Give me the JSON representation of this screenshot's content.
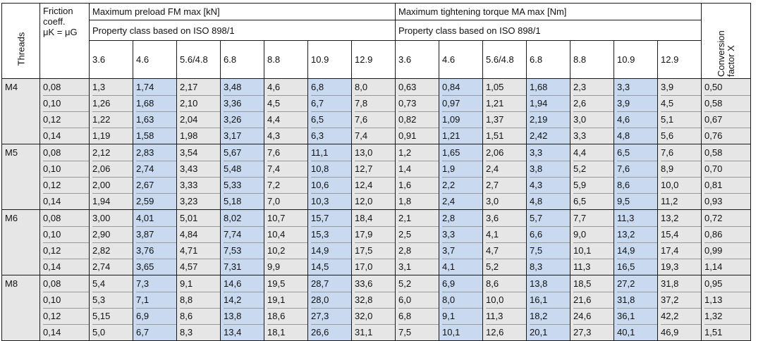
{
  "headers": {
    "threads": "Threads",
    "friction_line1": "Friction",
    "friction_line2": "coeff.",
    "friction_symbol": "μK = μG",
    "preload_title": "Maximum preload FM max [kN]",
    "torque_title": "Maximum tightening torque MA max [Nm]",
    "property_class_preload": "Property class based on ISO 898/1",
    "property_class_torque": "Property class based on ISO 898/1",
    "conversion": "Conversion factor X"
  },
  "classes": [
    "3.6",
    "4.6",
    "5.6/4.8",
    "6.8",
    "8.8",
    "10.9",
    "12.9"
  ],
  "groups": [
    {
      "thread": "M4",
      "friction": [
        "0,08",
        "0,10",
        "0,12",
        "0,14"
      ],
      "preload": [
        [
          "1,3",
          "1,26",
          "1,22",
          "1,19"
        ],
        [
          "1,74",
          "1,68",
          "1,63",
          "1,58"
        ],
        [
          "2,17",
          "2,10",
          "2,04",
          "1,98"
        ],
        [
          "3,48",
          "3,36",
          "3,26",
          "3,17"
        ],
        [
          "4,6",
          "4,5",
          "4,4",
          "4,3"
        ],
        [
          "6,8",
          "6,7",
          "6,5",
          "6,3"
        ],
        [
          "8,0",
          "7,8",
          "7,6",
          "7,4"
        ]
      ],
      "torque": [
        [
          "0,63",
          "0,73",
          "0,82",
          "0,91"
        ],
        [
          "0,84",
          "0,97",
          "1,09",
          "1,21"
        ],
        [
          "1,05",
          "1,21",
          "1,37",
          "1,51"
        ],
        [
          "1,68",
          "1,94",
          "2,19",
          "2,42"
        ],
        [
          "2,3",
          "2,6",
          "3,0",
          "3,3"
        ],
        [
          "3,3",
          "3,9",
          "4,6",
          "4,8"
        ],
        [
          "3,9",
          "4,5",
          "5,1",
          "5,6"
        ]
      ],
      "conversion": [
        "0,50",
        "0,58",
        "0,67",
        "0,76"
      ]
    },
    {
      "thread": "M5",
      "friction": [
        "0,08",
        "0,10",
        "0,12",
        "0,14"
      ],
      "preload": [
        [
          "2,12",
          "2,06",
          "2,00",
          "1,94"
        ],
        [
          "2,83",
          "2,74",
          "2,67",
          "2,59"
        ],
        [
          "3,54",
          "3,43",
          "3,33",
          "3,23"
        ],
        [
          "5,67",
          "5,48",
          "5,33",
          "5,18"
        ],
        [
          "7,6",
          "7,4",
          "7,2",
          "7,0"
        ],
        [
          "11,1",
          "10,8",
          "10,6",
          "10,3"
        ],
        [
          "13,0",
          "12,7",
          "12,4",
          "12,0"
        ]
      ],
      "torque": [
        [
          "1,2",
          "1,4",
          "1,6",
          "1,8"
        ],
        [
          "1,65",
          "1,9",
          "2,2",
          "2,4"
        ],
        [
          "2,06",
          "2,4",
          "2,7",
          "3,0"
        ],
        [
          "3,3",
          "3,8",
          "4,3",
          "4,8"
        ],
        [
          "4,4",
          "5,2",
          "5,9",
          "6,5"
        ],
        [
          "6,5",
          "7,6",
          "8,6",
          "9,5"
        ],
        [
          "7,6",
          "8,9",
          "10,0",
          "11,2"
        ]
      ],
      "conversion": [
        "0,58",
        "0,70",
        "0,81",
        "0,93"
      ]
    },
    {
      "thread": "M6",
      "friction": [
        "0,08",
        "0,10",
        "0,12",
        "0,14"
      ],
      "preload": [
        [
          "3,00",
          "2,90",
          "2,82",
          "2,74"
        ],
        [
          "4,01",
          "3,87",
          "3,76",
          "3,65"
        ],
        [
          "5,01",
          "4,84",
          "4,71",
          "4,57"
        ],
        [
          "8,02",
          "7,74",
          "7,53",
          "7,31"
        ],
        [
          "10,7",
          "10,4",
          "10,2",
          "9,9"
        ],
        [
          "15,7",
          "15,3",
          "14,9",
          "14,5"
        ],
        [
          "18,4",
          "17,9",
          "17,5",
          "17,0"
        ]
      ],
      "torque": [
        [
          "2,1",
          "2,5",
          "2,8",
          "3,1"
        ],
        [
          "2,8",
          "3,3",
          "3,7",
          "4,1"
        ],
        [
          "3,6",
          "4,1",
          "4,7",
          "5,2"
        ],
        [
          "5,7",
          "6,6",
          "7,5",
          "8,3"
        ],
        [
          "7,7",
          "9,0",
          "10,1",
          "11,3"
        ],
        [
          "11,3",
          "13,2",
          "14,9",
          "16,5"
        ],
        [
          "13,2",
          "15,4",
          "17,4",
          "19,3"
        ]
      ],
      "conversion": [
        "0,72",
        "0,86",
        "0,99",
        "1,14"
      ]
    },
    {
      "thread": "M8",
      "friction": [
        "0,08",
        "0,10",
        "0,12",
        "0,14"
      ],
      "preload": [
        [
          "5,4",
          "5,3",
          "5,15",
          "5,0"
        ],
        [
          "7,3",
          "7,1",
          "6,9",
          "6,7"
        ],
        [
          "9,1",
          "8,8",
          "8,6",
          "8,3"
        ],
        [
          "14,6",
          "14,2",
          "13,8",
          "13,4"
        ],
        [
          "19,5",
          "19,1",
          "18,6",
          "18,1"
        ],
        [
          "28,7",
          "28,0",
          "27,3",
          "26,6"
        ],
        [
          "33,6",
          "32,8",
          "32,0",
          "31,1"
        ]
      ],
      "torque": [
        [
          "5,2",
          "6,0",
          "6,8",
          "7,5"
        ],
        [
          "6,9",
          "8,0",
          "9,1",
          "10,1"
        ],
        [
          "8,6",
          "10,0",
          "11,3",
          "12,6"
        ],
        [
          "13,8",
          "16,1",
          "18,2",
          "20,1"
        ],
        [
          "18,5",
          "21,6",
          "24,6",
          "27,3"
        ],
        [
          "27,2",
          "31,8",
          "36,1",
          "40,1"
        ],
        [
          "31,8",
          "37,2",
          "42,2",
          "46,9"
        ]
      ],
      "conversion": [
        "0,95",
        "1,13",
        "1,32",
        "1,51"
      ]
    }
  ]
}
